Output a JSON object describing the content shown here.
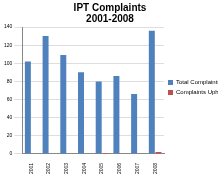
{
  "chart_data": {
    "type": "bar",
    "title": [
      "IPT Complaints",
      "2001-2008"
    ],
    "categories": [
      "2001",
      "2002",
      "2003",
      "2004",
      "2005",
      "2006",
      "2007",
      "2008"
    ],
    "series": [
      {
        "name": "Total Complaints",
        "color": "#4f81bd",
        "values": [
          102,
          130,
          109,
          90,
          80,
          86,
          66,
          136
        ]
      },
      {
        "name": "Complaints Upheld",
        "color": "#c0504d",
        "values": [
          0,
          0,
          0,
          0,
          1,
          0,
          0,
          2
        ]
      }
    ],
    "ylim": [
      0,
      140
    ],
    "yticks": [
      0,
      20,
      40,
      60,
      80,
      100,
      120,
      140
    ],
    "grid": true,
    "legend": "right"
  }
}
